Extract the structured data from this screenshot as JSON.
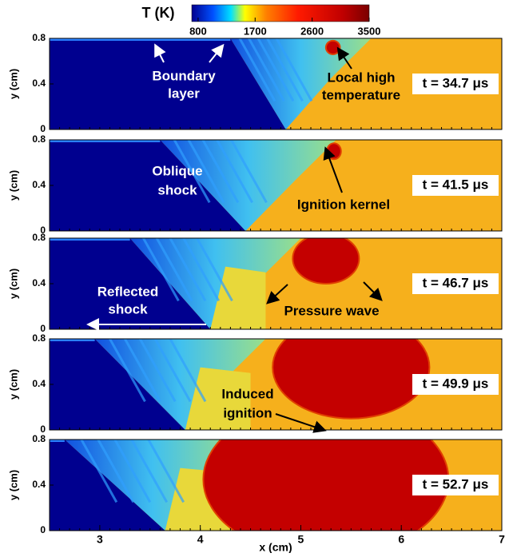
{
  "colorbar": {
    "title": "T (K)",
    "lim": [
      700,
      3500
    ],
    "ticks": [
      800,
      1700,
      2600,
      3500
    ]
  },
  "chart_data": [
    {
      "type": "contour",
      "xlim": [
        2.5,
        7
      ],
      "ylim": [
        0,
        0.8
      ],
      "yticks": [
        0,
        0.4,
        0.8
      ],
      "ylabel": "y (cm)",
      "time_label": "t = 34.7 μs",
      "annotations": [
        {
          "lines": [
            "Boundary",
            "layer"
          ]
        },
        {
          "lines": [
            "Local high",
            "temperature"
          ]
        }
      ]
    },
    {
      "type": "contour",
      "xlim": [
        2.5,
        7
      ],
      "ylim": [
        0,
        0.8
      ],
      "yticks": [
        0,
        0.4,
        0.8
      ],
      "ylabel": "y (cm)",
      "time_label": "t = 41.5 μs",
      "annotations": [
        {
          "lines": [
            "Oblique",
            "shock"
          ]
        },
        {
          "lines": [
            "Ignition kernel"
          ]
        }
      ]
    },
    {
      "type": "contour",
      "xlim": [
        2.5,
        7
      ],
      "ylim": [
        0,
        0.8
      ],
      "yticks": [
        0,
        0.4,
        0.8
      ],
      "ylabel": "y (cm)",
      "time_label": "t = 46.7 μs",
      "annotations": [
        {
          "lines": [
            "Reflected",
            "shock"
          ]
        },
        {
          "lines": [
            "Pressure wave"
          ]
        }
      ]
    },
    {
      "type": "contour",
      "xlim": [
        2.5,
        7
      ],
      "ylim": [
        0,
        0.8
      ],
      "yticks": [
        0,
        0.4,
        0.8
      ],
      "ylabel": "y (cm)",
      "time_label": "t = 49.9 μs",
      "annotations": [
        {
          "lines": [
            "Induced",
            "ignition"
          ]
        }
      ]
    },
    {
      "type": "contour",
      "xlim": [
        2.5,
        7
      ],
      "ylim": [
        0,
        0.8
      ],
      "yticks": [
        0,
        0.4,
        0.8
      ],
      "ylabel": "y (cm)",
      "time_label": "t = 52.7 μs",
      "annotations": [],
      "xticks": [
        3,
        4,
        5,
        6,
        7
      ],
      "xlabel": "x (cm)"
    }
  ]
}
